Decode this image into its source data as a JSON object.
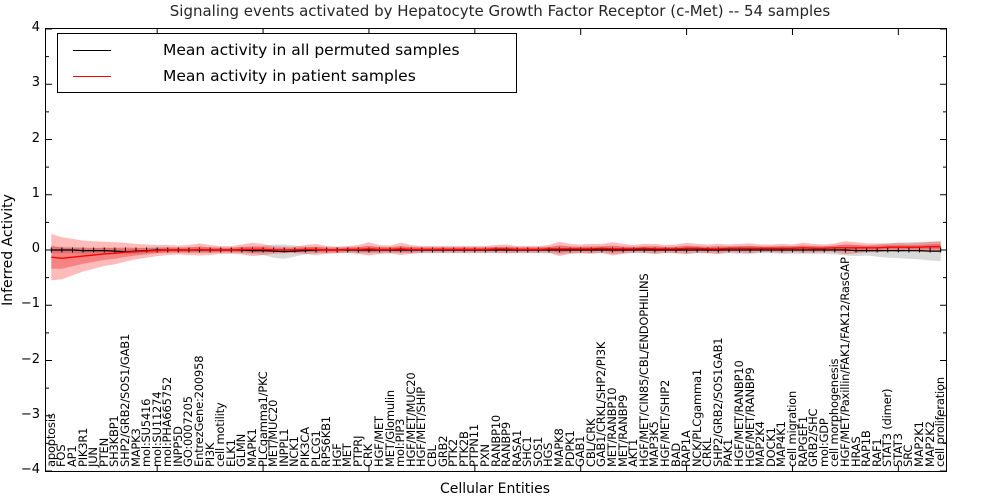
{
  "figure": {
    "title": "Signaling events activated by Hepatocyte Growth Factor Receptor (c-Met) -- 54 samples",
    "xlabel": "Cellular Entities",
    "ylabel": "Inferred Activity"
  },
  "legend": {
    "items": [
      {
        "label": "Mean activity in all permuted samples",
        "color": "#000000"
      },
      {
        "label": "Mean activity in patient samples",
        "color": "#ff0000"
      }
    ]
  },
  "axes": {
    "y_ticks": [
      "4",
      "3",
      "2",
      "1",
      "0",
      "−1",
      "−2",
      "−3",
      "−4"
    ],
    "ylim": [
      -4,
      4
    ],
    "x_major_tick_every": 10
  },
  "colors": {
    "patient_line": "#ff0000",
    "permuted_line": "#000000",
    "patient_band": "rgba(255,0,0,0.27)",
    "patient_band_inner": "rgba(230,30,30,0.35)",
    "permuted_band": "rgba(0,0,0,0.15)",
    "axis": "#000000"
  },
  "chart_data": {
    "type": "line",
    "title": "Signaling events activated by Hepatocyte Growth Factor Receptor (c-Met) -- 54 samples",
    "xlabel": "Cellular Entities",
    "ylabel": "Inferred Activity",
    "ylim": [
      -4,
      4
    ],
    "grid": false,
    "legend_position": "upper left",
    "categories": [
      "apoptosis",
      "FOS",
      "AP1",
      "PIK3R1",
      "JUN",
      "PTEN",
      "SH3KBP1",
      "SHP2/GRB2/SOS1/GAB1",
      "MAPK3",
      "mol:SU5416",
      "mol:SU11274",
      "mol:PHA665752",
      "INPP5D",
      "GO:0007205",
      "EntrezGene:200958",
      "PI3K",
      "cell motility",
      "ELK1",
      "GLMN",
      "MAPK1",
      "PLCgamma1/PKC",
      "MET/MUC20",
      "INPPL1",
      "NCK1",
      "PIK3CA",
      "PLCG1",
      "RPS6KB1",
      "HGF",
      "MET",
      "PTPRJ",
      "CRK",
      "HGF/MET",
      "MET/Glomulin",
      "mol:PIP3",
      "HGF/MET/MUC20",
      "HGF/MET/SHIP",
      "CBL",
      "GRB2",
      "PTK2",
      "PTK2B",
      "PTPN11",
      "PXN",
      "RANBP10",
      "RANBP9",
      "RASA1",
      "SHC1",
      "SOS1",
      "HGS",
      "MAPK8",
      "PDPK1",
      "GAB1",
      "CBL/CRK",
      "GAB1/CRKL/SHP2/PI3K",
      "MET/RANBP10",
      "MET/RANBP9",
      "AKT1",
      "HGF/MET/CIN85/CBL/ENDOPHILINS",
      "MAP3K5",
      "HGF/MET/SHIP2",
      "BAD",
      "RAP1A",
      "NCK/PLCgamma1",
      "CRKL",
      "SHP2/GRB2/SOS1GAB1",
      "PAK1",
      "HGF/MET/RANBP10",
      "HGF/MET/RANBP9",
      "MAP2K4",
      "DOCK1",
      "MAP4K1",
      "cell migration",
      "RAPGEF1",
      "GRB2/SHC",
      "mol:GDP",
      "cell morphogenesis",
      "HGF/MET/Paxillin/FAK1/FAK12/RasGAP",
      "HRAS",
      "RAP1B",
      "RAF1",
      "STAT3 (dimer)",
      "STAT3",
      "SRC",
      "MAP2K1",
      "MAP2K2",
      "cell proliferation"
    ],
    "series": [
      {
        "name": "Mean activity in all permuted samples",
        "color": "#000000",
        "values": [
          0,
          0,
          0,
          -0.01,
          -0.01,
          -0.01,
          -0.02,
          -0.03,
          -0.02,
          -0.01,
          0,
          0,
          0,
          0,
          0,
          0,
          0,
          0,
          0,
          -0.01,
          -0.01,
          -0.02,
          -0.03,
          -0.02,
          -0.01,
          0,
          0,
          0,
          0,
          0,
          0,
          0,
          0,
          0,
          0,
          0,
          0,
          0,
          0,
          0,
          0,
          0,
          0,
          0,
          0,
          0,
          0,
          0,
          0,
          0,
          0,
          0,
          0,
          0,
          0,
          0,
          0,
          0,
          0,
          0,
          0,
          0,
          0,
          0,
          0,
          0,
          0,
          0,
          0,
          0,
          0,
          0,
          0,
          0,
          0,
          0,
          -0.01,
          -0.01,
          -0.01,
          -0.01,
          -0.01,
          -0.01,
          -0.01,
          -0.02,
          -0.02
        ],
        "band_halfwidth": [
          0.06,
          0.06,
          0.06,
          0.06,
          0.05,
          0.05,
          0.05,
          0.05,
          0.05,
          0.05,
          0.05,
          0.05,
          0.05,
          0.05,
          0.05,
          0.05,
          0.05,
          0.05,
          0.06,
          0.06,
          0.08,
          0.12,
          0.13,
          0.1,
          0.07,
          0.06,
          0.06,
          0.06,
          0.06,
          0.06,
          0.06,
          0.06,
          0.06,
          0.06,
          0.06,
          0.06,
          0.06,
          0.06,
          0.06,
          0.06,
          0.06,
          0.06,
          0.06,
          0.06,
          0.06,
          0.06,
          0.06,
          0.06,
          0.07,
          0.06,
          0.06,
          0.06,
          0.06,
          0.07,
          0.06,
          0.06,
          0.06,
          0.07,
          0.06,
          0.06,
          0.07,
          0.06,
          0.06,
          0.07,
          0.06,
          0.07,
          0.07,
          0.06,
          0.06,
          0.07,
          0.07,
          0.07,
          0.07,
          0.07,
          0.08,
          0.1,
          0.1,
          0.09,
          0.11,
          0.13,
          0.14,
          0.15,
          0.16,
          0.17,
          0.18
        ]
      },
      {
        "name": "Mean activity in patient samples",
        "color": "#ff0000",
        "values": [
          -0.13,
          -0.15,
          -0.13,
          -0.11,
          -0.09,
          -0.07,
          -0.06,
          -0.04,
          -0.03,
          -0.02,
          -0.01,
          0,
          0,
          0,
          0.01,
          0,
          0,
          0,
          0.01,
          0.01,
          0.01,
          0,
          0,
          0,
          0.01,
          0.01,
          0,
          0,
          0.01,
          0.01,
          0.02,
          0.01,
          0.01,
          0.02,
          0.01,
          0.01,
          0.01,
          0.01,
          0.01,
          0.01,
          0.01,
          0.01,
          0.02,
          0.02,
          0.01,
          0.01,
          0.01,
          0.02,
          0.02,
          0.02,
          0.02,
          0.02,
          0.03,
          0.02,
          0.02,
          0.02,
          0.03,
          0.02,
          0.02,
          0.02,
          0.03,
          0.03,
          0.02,
          0.02,
          0.03,
          0.03,
          0.03,
          0.03,
          0.03,
          0.03,
          0.03,
          0.04,
          0.03,
          0.03,
          0.04,
          0.04,
          0.04,
          0.04,
          0.04,
          0.05,
          0.05,
          0.05,
          0.05,
          0.06,
          0.06
        ],
        "band_halfwidth": [
          0.42,
          0.38,
          0.33,
          0.28,
          0.25,
          0.22,
          0.2,
          0.17,
          0.14,
          0.12,
          0.1,
          0.09,
          0.08,
          0.09,
          0.11,
          0.09,
          0.07,
          0.07,
          0.09,
          0.12,
          0.1,
          0.07,
          0.06,
          0.06,
          0.08,
          0.1,
          0.07,
          0.06,
          0.06,
          0.08,
          0.12,
          0.08,
          0.07,
          0.11,
          0.08,
          0.06,
          0.06,
          0.06,
          0.06,
          0.06,
          0.06,
          0.06,
          0.07,
          0.08,
          0.06,
          0.06,
          0.06,
          0.07,
          0.13,
          0.09,
          0.08,
          0.09,
          0.08,
          0.12,
          0.09,
          0.07,
          0.08,
          0.09,
          0.07,
          0.08,
          0.1,
          0.08,
          0.08,
          0.09,
          0.07,
          0.08,
          0.09,
          0.07,
          0.07,
          0.08,
          0.07,
          0.09,
          0.08,
          0.07,
          0.08,
          0.12,
          0.1,
          0.08,
          0.08,
          0.07,
          0.08,
          0.07,
          0.08,
          0.09,
          0.1
        ]
      }
    ]
  }
}
